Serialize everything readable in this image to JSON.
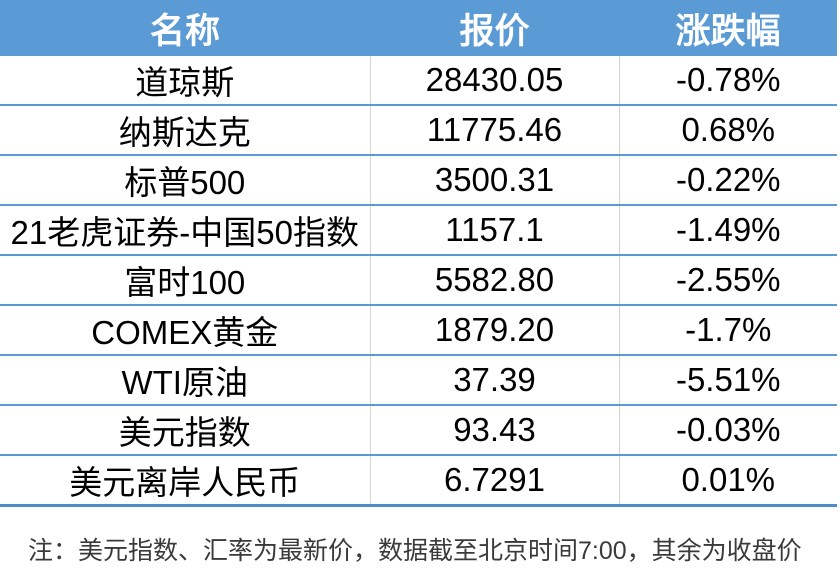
{
  "table": {
    "columns": [
      {
        "key": "name",
        "label": "名称"
      },
      {
        "key": "price",
        "label": "报价"
      },
      {
        "key": "change",
        "label": "涨跌幅"
      }
    ],
    "rows": [
      {
        "name": "道琼斯",
        "price": "28430.05",
        "change": "-0.78%"
      },
      {
        "name": "纳斯达克",
        "price": "11775.46",
        "change": "0.68%"
      },
      {
        "name": "标普500",
        "price": "3500.31",
        "change": "-0.22%"
      },
      {
        "name": "21老虎证券-中国50指数",
        "price": "1157.1",
        "change": "-1.49%"
      },
      {
        "name": "富时100",
        "price": "5582.80",
        "change": "-2.55%"
      },
      {
        "name": "COMEX黄金",
        "price": "1879.20",
        "change": "-1.7%"
      },
      {
        "name": "WTI原油",
        "price": "37.39",
        "change": "-5.51%"
      },
      {
        "name": "美元指数",
        "price": "93.43",
        "change": "-0.03%"
      },
      {
        "name": "美元离岸人民币",
        "price": "6.7291",
        "change": "0.01%"
      }
    ]
  },
  "note": "注：美元指数、汇率为最新价，数据截至北京时间7:00，其余为收盘价",
  "colors": {
    "header_bg": "#5B9BD5",
    "header_text": "#FFFFFF",
    "row_border": "#5B9BD5",
    "bottom_border": "#4E8DC9",
    "column_divider": "#D4D4D4",
    "body_text": "#000000",
    "note_text": "#3A3A3A"
  },
  "chart_data": {
    "type": "table",
    "title": "",
    "columns": [
      "名称",
      "报价",
      "涨跌幅"
    ],
    "rows": [
      [
        "道琼斯",
        28430.05,
        "-0.78%"
      ],
      [
        "纳斯达克",
        11775.46,
        "0.68%"
      ],
      [
        "标普500",
        3500.31,
        "-0.22%"
      ],
      [
        "21老虎证券-中国50指数",
        1157.1,
        "-1.49%"
      ],
      [
        "富时100",
        5582.8,
        "-2.55%"
      ],
      [
        "COMEX黄金",
        1879.2,
        "-1.7%"
      ],
      [
        "WTI原油",
        37.39,
        "-5.51%"
      ],
      [
        "美元指数",
        93.43,
        "-0.03%"
      ],
      [
        "美元离岸人民币",
        6.7291,
        "0.01%"
      ]
    ],
    "annotations": [
      "注：美元指数、汇率为最新价，数据截至北京时间7:00，其余为收盘价"
    ]
  }
}
